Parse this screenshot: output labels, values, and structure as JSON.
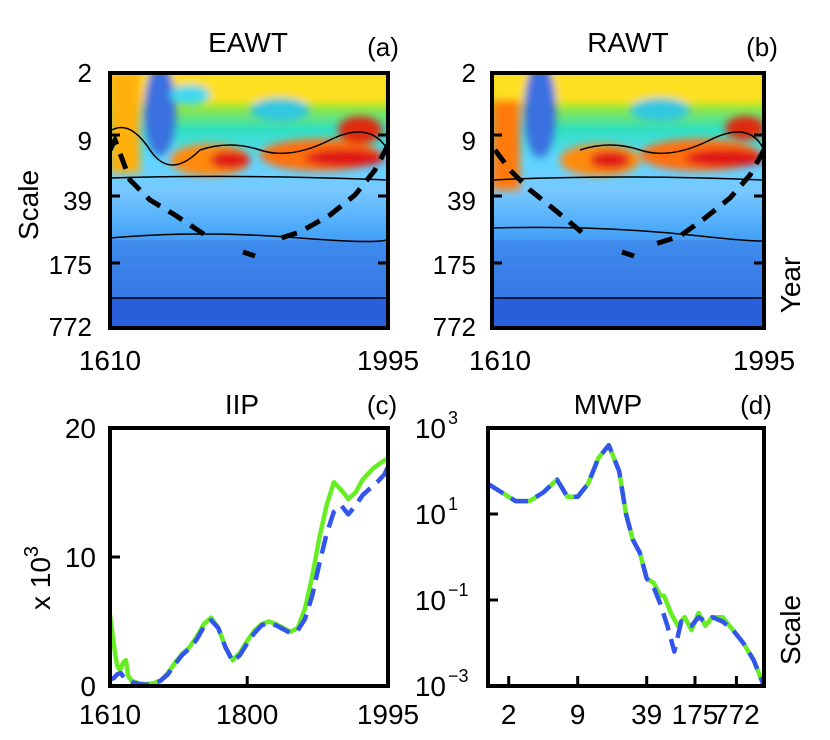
{
  "panels": {
    "a": {
      "title": "EAWT",
      "tag": "(a)",
      "ylabel": "Scale",
      "xticks": [
        "1610",
        "1995"
      ],
      "yticks": [
        "2",
        "9",
        "39",
        "175",
        "772"
      ],
      "type": "heatmap"
    },
    "b": {
      "title": "RAWT",
      "tag": "(b)",
      "side_label": "Year",
      "xticks": [
        "1610",
        "1995"
      ],
      "yticks": [
        "2",
        "9",
        "39",
        "175",
        "772"
      ],
      "type": "heatmap"
    }
  },
  "chart_data": [
    {
      "type": "line",
      "title": "IIP",
      "tag": "(c)",
      "ylabel": "x 10",
      "ylabel_exp": "3",
      "xlim": [
        1610,
        1995
      ],
      "ylim": [
        0,
        20
      ],
      "xticks": [
        1610,
        1800,
        1995
      ],
      "xtick_labels": [
        "1610",
        "1800",
        "1995"
      ],
      "yticks": [
        0,
        10,
        20
      ],
      "ytick_labels": [
        "0",
        "10",
        "20"
      ],
      "colors": {
        "eawt": "#66ee22",
        "rawt": "#3355ee"
      },
      "series": [
        {
          "name": "EAWT",
          "style": "solid",
          "x": [
            1610,
            1613,
            1617,
            1620,
            1624,
            1628,
            1632,
            1635,
            1640,
            1650,
            1660,
            1670,
            1680,
            1690,
            1700,
            1710,
            1720,
            1730,
            1740,
            1750,
            1760,
            1770,
            1780,
            1790,
            1800,
            1810,
            1820,
            1830,
            1840,
            1850,
            1860,
            1870,
            1880,
            1890,
            1900,
            1910,
            1920,
            1930,
            1940,
            1950,
            1955,
            1960,
            1965,
            1970,
            1975,
            1980,
            1985,
            1990,
            1995
          ],
          "y": [
            5.5,
            4.2,
            2.5,
            1.6,
            1.2,
            1.8,
            2.0,
            0.8,
            0.4,
            0.2,
            0.15,
            0.2,
            0.4,
            1.0,
            1.8,
            2.5,
            3.0,
            3.8,
            4.8,
            5.3,
            4.5,
            3.0,
            2.0,
            2.6,
            3.5,
            4.3,
            4.8,
            5.0,
            4.8,
            4.5,
            4.2,
            4.5,
            6.0,
            8.5,
            11.5,
            14.0,
            15.8,
            15.2,
            14.5,
            15.0,
            15.5,
            16.0,
            16.3,
            16.6,
            16.9,
            17.1,
            17.3,
            17.5,
            17.6
          ]
        },
        {
          "name": "RAWT",
          "style": "dashed",
          "x": [
            1610,
            1615,
            1620,
            1625,
            1630,
            1640,
            1650,
            1660,
            1670,
            1680,
            1690,
            1700,
            1710,
            1720,
            1730,
            1740,
            1750,
            1760,
            1770,
            1780,
            1790,
            1800,
            1810,
            1820,
            1830,
            1840,
            1850,
            1860,
            1870,
            1880,
            1890,
            1900,
            1910,
            1920,
            1930,
            1940,
            1950,
            1960,
            1970,
            1980,
            1990,
            1995
          ],
          "y": [
            0.5,
            0.6,
            0.9,
            1.0,
            0.6,
            0.3,
            0.15,
            0.1,
            0.2,
            0.4,
            0.9,
            1.7,
            2.4,
            2.9,
            3.6,
            4.6,
            5.1,
            4.5,
            3.0,
            1.9,
            2.4,
            3.3,
            4.1,
            4.7,
            4.9,
            4.7,
            4.4,
            4.1,
            4.3,
            5.2,
            7.0,
            9.5,
            11.8,
            13.5,
            14.0,
            13.3,
            14.0,
            14.8,
            15.3,
            15.8,
            16.4,
            17.0
          ]
        }
      ]
    },
    {
      "type": "line",
      "title": "MWP",
      "tag": "(d)",
      "xlabel_side": "Scale",
      "yscale": "log",
      "xlim": [
        0,
        8
      ],
      "ylim": [
        -3,
        3
      ],
      "xticks": [
        0.6,
        2.6,
        4.6,
        6.0,
        7.2
      ],
      "xtick_labels": [
        "2",
        "9",
        "39",
        "175",
        "772"
      ],
      "yticks": [
        -3,
        -1,
        1,
        3
      ],
      "ytick_labels": [
        [
          "10",
          "−3"
        ],
        [
          "10",
          "−1"
        ],
        [
          "10",
          "1"
        ],
        [
          "10",
          "3"
        ]
      ],
      "colors": {
        "eawt": "#66ee22",
        "rawt": "#3355ee"
      },
      "series": [
        {
          "name": "EAWT",
          "style": "solid",
          "x": [
            0.0,
            0.4,
            0.8,
            1.2,
            1.6,
            2.0,
            2.3,
            2.6,
            2.9,
            3.2,
            3.5,
            3.8,
            4.0,
            4.2,
            4.4,
            4.6,
            4.8,
            5.0,
            5.1,
            5.3,
            5.5,
            5.7,
            5.9,
            6.1,
            6.3,
            6.5,
            6.8,
            7.1,
            7.4,
            7.7,
            8.0
          ],
          "y": [
            1.7,
            1.5,
            1.3,
            1.3,
            1.5,
            1.8,
            1.4,
            1.4,
            1.7,
            2.3,
            2.6,
            2.0,
            1.0,
            0.4,
            0.1,
            -0.5,
            -0.6,
            -0.9,
            -0.9,
            -1.3,
            -1.6,
            -1.4,
            -1.7,
            -1.3,
            -1.6,
            -1.4,
            -1.4,
            -1.7,
            -2.0,
            -2.4,
            -3.0
          ]
        },
        {
          "name": "RAWT",
          "style": "dashed",
          "x": [
            0.0,
            0.4,
            0.8,
            1.2,
            1.6,
            2.0,
            2.3,
            2.6,
            2.9,
            3.2,
            3.5,
            3.8,
            4.0,
            4.2,
            4.4,
            4.6,
            4.8,
            5.0,
            5.2,
            5.4,
            5.6,
            5.9,
            6.1,
            6.3,
            6.5,
            6.8,
            7.1,
            7.4,
            7.7,
            8.0
          ],
          "y": [
            1.7,
            1.5,
            1.3,
            1.3,
            1.5,
            1.8,
            1.4,
            1.4,
            1.7,
            2.3,
            2.6,
            2.0,
            1.0,
            0.4,
            0.1,
            -0.5,
            -0.7,
            -1.1,
            -1.6,
            -2.2,
            -1.5,
            -1.6,
            -1.4,
            -1.5,
            -1.4,
            -1.5,
            -1.7,
            -2.0,
            -2.4,
            -3.0
          ]
        }
      ]
    }
  ]
}
